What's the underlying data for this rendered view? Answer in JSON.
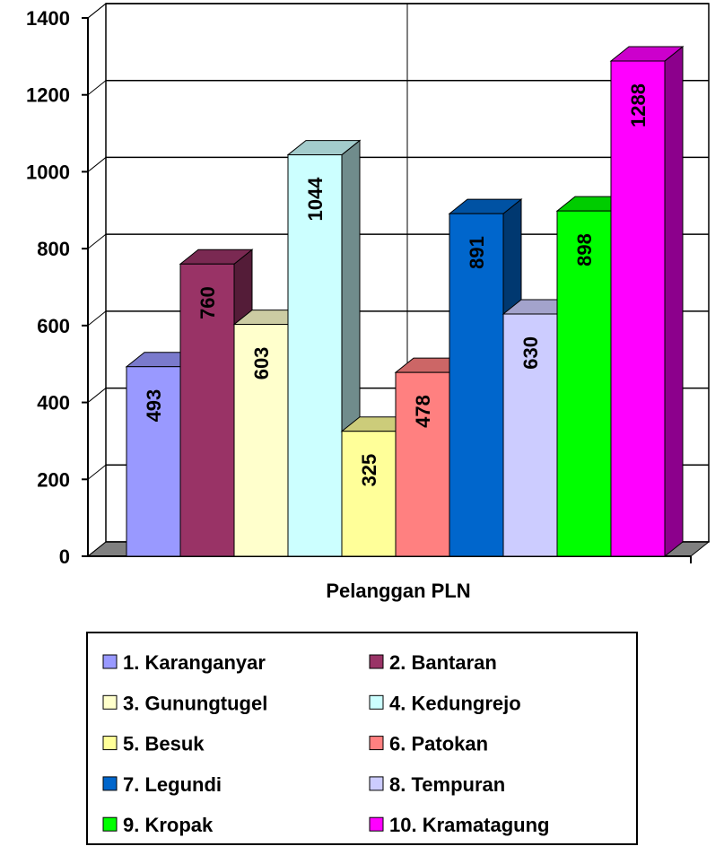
{
  "chart_data": {
    "type": "bar3d",
    "categories": [
      "Pelanggan PLN"
    ],
    "series": [
      {
        "name": "1. Karanganyar",
        "color": "#9999ff",
        "values": [
          493
        ]
      },
      {
        "name": "2. Bantaran",
        "color": "#993366",
        "values": [
          760
        ]
      },
      {
        "name": "3. Gunungtugel",
        "color": "#ffffcc",
        "values": [
          603
        ]
      },
      {
        "name": "4. Kedungrejo",
        "color": "#ccffff",
        "values": [
          1044
        ]
      },
      {
        "name": "5. Besuk",
        "color": "#ffff99",
        "values": [
          325
        ]
      },
      {
        "name": "6. Patokan",
        "color": "#ff8080",
        "values": [
          478
        ]
      },
      {
        "name": "7. Legundi",
        "color": "#0066cc",
        "values": [
          891
        ]
      },
      {
        "name": "8. Tempuran",
        "color": "#ccccff",
        "values": [
          630
        ]
      },
      {
        "name": "9. Kropak",
        "color": "#00ff00",
        "values": [
          898
        ]
      },
      {
        "name": "10. Kramatagung",
        "color": "#ff00ff",
        "values": [
          1288
        ]
      }
    ],
    "ylim": [
      0,
      1400
    ],
    "yticks": [
      0,
      200,
      400,
      600,
      800,
      1000,
      1200,
      1400
    ],
    "grid": true
  }
}
